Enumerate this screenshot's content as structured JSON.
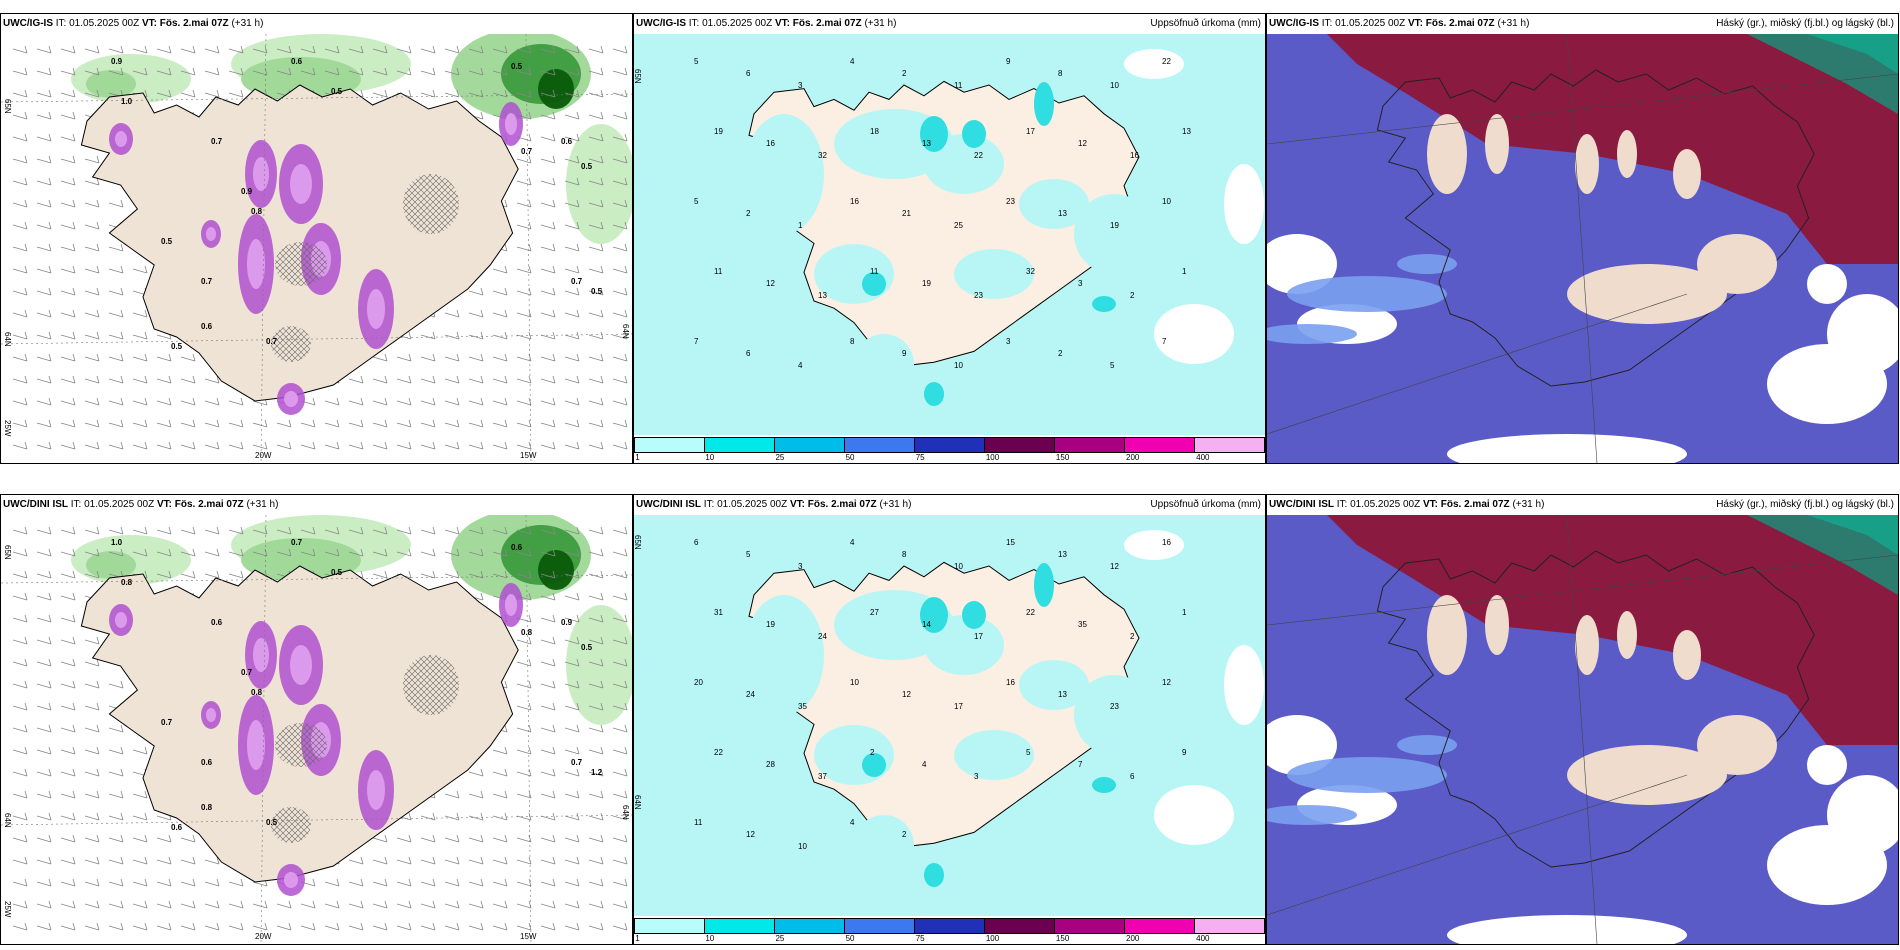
{
  "panels": [
    {
      "id": "p1",
      "model": "UWC/IG-IS",
      "it": "IT: 01.05.2025 00Z",
      "vt_label": "VT:",
      "vt": "Fös. 2.mai 07Z",
      "lead": "(+31 h)",
      "right": "",
      "type": "wind",
      "axis": {
        "left_top": "65N",
        "left_bottom": "64N",
        "left_bottom2": "25W",
        "bottom_a": "20W",
        "bottom_b": "15W",
        "right": "64N"
      }
    },
    {
      "id": "p2",
      "model": "UWC/IG-IS",
      "it": "IT: 01.05.2025 00Z",
      "vt_label": "VT:",
      "vt": "Fös. 2.mai 07Z",
      "lead": "(+31 h)",
      "right": "Uppsöfnuð úrkoma (mm)",
      "type": "precip",
      "axis": {
        "left_top": "65N"
      }
    },
    {
      "id": "p3",
      "model": "UWC/IG-IS",
      "it": "IT: 01.05.2025 00Z",
      "vt_label": "VT:",
      "vt": "Fös. 2.mai 07Z",
      "lead": "(+31 h)",
      "right": "Háský (gr.), miðský (fj.bl.) og lágský (bl.)",
      "type": "cloud"
    },
    {
      "id": "p4",
      "model": "UWC/DINI ISL",
      "it": "IT: 01.05.2025 00Z",
      "vt_label": "VT:",
      "vt": "Fös. 2.mai 07Z",
      "lead": "(+31 h)",
      "right": "",
      "type": "wind",
      "axis": {
        "left_top": "65N",
        "left_bottom": "64N",
        "left_bottom2": "25W",
        "bottom_a": "20W",
        "bottom_b": "15W",
        "right": "64N"
      }
    },
    {
      "id": "p5",
      "model": "UWC/DINI ISL",
      "it": "IT: 01.05.2025 00Z",
      "vt_label": "VT:",
      "vt": "Fös. 2.mai 07Z",
      "lead": "(+31 h)",
      "right": "Uppsöfnuð úrkoma (mm)",
      "type": "precip",
      "axis": {
        "right": "65N",
        "right2": "64N"
      }
    },
    {
      "id": "p6",
      "model": "UWC/DINI ISL",
      "it": "IT: 01.05.2025 00Z",
      "vt_label": "VT:",
      "vt": "Fös. 2.mai 07Z",
      "lead": "(+31 h)",
      "right": "Háský (gr.), miðský (fj.bl.) og lágský (bl.)",
      "type": "cloud"
    }
  ],
  "colorbar": {
    "colors": [
      "#b8fcfc",
      "#00e8e8",
      "#00bce8",
      "#3c78f0",
      "#2030b8",
      "#6c0050",
      "#a80080",
      "#f000b0",
      "#f4b0f0"
    ],
    "ticks": [
      "1",
      "10",
      "25",
      "50",
      "75",
      "100",
      "150",
      "200",
      "400"
    ]
  },
  "wind_labels_1": [
    "0.9",
    "1.0",
    "0.7",
    "0.6",
    "0.5",
    "0.8",
    "0.7",
    "0.5",
    "0.6",
    "0.7",
    "0.5",
    "0.9",
    "0.5",
    "0.7",
    "0.6",
    "0.7",
    "0.5",
    "0.5"
  ],
  "wind_labels_2": [
    "1.0",
    "0.8",
    "0.6",
    "0.7",
    "0.5",
    "0.8",
    "0.6",
    "0.6",
    "0.9",
    "0.8",
    "0.5",
    "0.7",
    "0.6",
    "0.5",
    "0.8",
    "0.7",
    "1.2",
    "0.7"
  ],
  "precip_labels_1": [
    "5",
    "6",
    "3",
    "4",
    "2",
    "11",
    "9",
    "8",
    "10",
    "22",
    "19",
    "16",
    "32",
    "18",
    "13",
    "22",
    "17",
    "12",
    "16",
    "13",
    "5",
    "2",
    "1",
    "16",
    "21",
    "25",
    "23",
    "13",
    "19",
    "10",
    "11",
    "12",
    "13",
    "11",
    "19",
    "23",
    "32",
    "3",
    "2",
    "1",
    "7",
    "6",
    "4",
    "8",
    "9",
    "10",
    "3",
    "2",
    "5",
    "7"
  ],
  "precip_labels_2": [
    "6",
    "5",
    "3",
    "4",
    "8",
    "10",
    "15",
    "13",
    "12",
    "16",
    "31",
    "19",
    "24",
    "27",
    "14",
    "17",
    "22",
    "35",
    "2",
    "1",
    "20",
    "24",
    "35",
    "10",
    "12",
    "17",
    "16",
    "13",
    "23",
    "12",
    "22",
    "28",
    "37",
    "2",
    "4",
    "3",
    "5",
    "7",
    "6",
    "9",
    "11",
    "12",
    "10",
    "4",
    "2"
  ]
}
